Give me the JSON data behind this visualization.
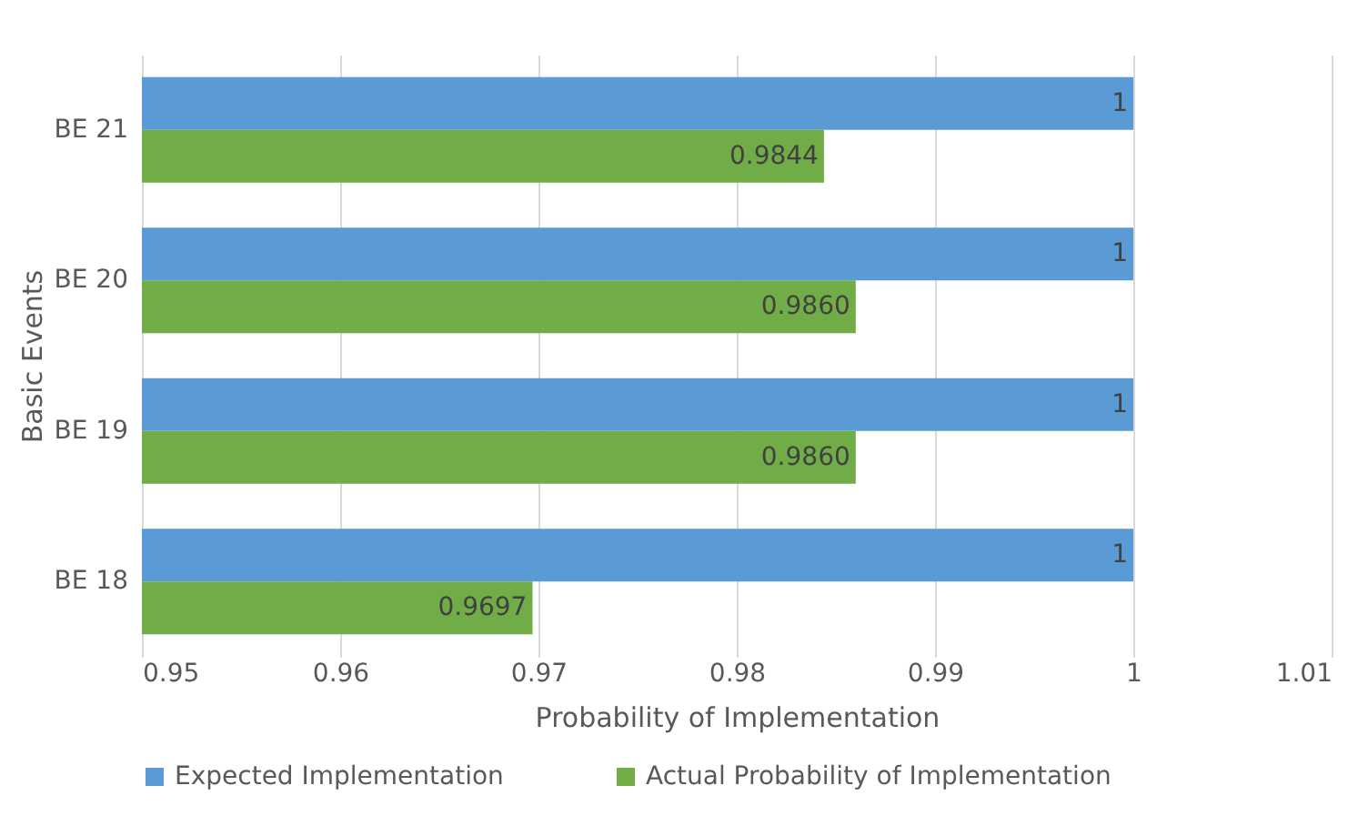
{
  "chart_data": {
    "type": "bar",
    "orientation": "horizontal",
    "xlabel": "Probability of Implementation",
    "ylabel": "Basic Events",
    "categories": [
      "BE 21",
      "BE 20",
      "BE 19",
      "BE 18"
    ],
    "series": [
      {
        "name": "Expected Implementation",
        "color": "#5b9bd5",
        "values": [
          1,
          1,
          1,
          1
        ],
        "value_labels": [
          "1",
          "1",
          "1",
          "1"
        ]
      },
      {
        "name": "Actual Probability of Implementation",
        "color": "#70ad47",
        "values": [
          0.9844,
          0.986,
          0.986,
          0.9697
        ],
        "value_labels": [
          "0.9844",
          "0.9860",
          "0.9860",
          "0.9697"
        ]
      }
    ],
    "xlim": [
      0.95,
      1.01
    ],
    "xticks": [
      0.95,
      0.96,
      0.97,
      0.98,
      0.99,
      1,
      1.01
    ],
    "grid": "x",
    "legend": "bottom"
  }
}
